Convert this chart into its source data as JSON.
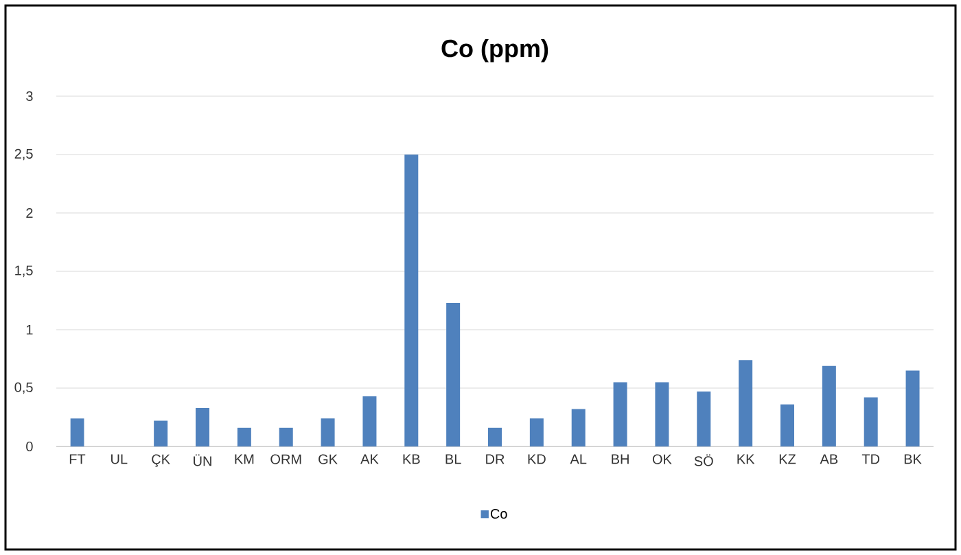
{
  "chart_data": {
    "type": "bar",
    "title": "Co (ppm)",
    "categories": [
      "FT",
      "UL",
      "ÇK",
      "ÜN",
      "KM",
      "ORM",
      "GK",
      "AK",
      "KB",
      "BL",
      "DR",
      "KD",
      "AL",
      "BH",
      "OK",
      "SÖ",
      "KK",
      "KZ",
      "AB",
      "TD",
      "BK"
    ],
    "series": [
      {
        "name": "Co",
        "color": "#4f81bd",
        "values": [
          0.24,
          0,
          0.22,
          0.33,
          0.16,
          0.16,
          0.24,
          0.43,
          2.5,
          1.23,
          0.16,
          0.24,
          0.32,
          0.55,
          0.55,
          0.47,
          0.74,
          0.36,
          0.69,
          0.42,
          0.65
        ]
      }
    ],
    "ylim": [
      0,
      3
    ],
    "yticks": [
      0,
      {
        "value": 0.5,
        "label": "0,5"
      },
      1,
      {
        "value": 1.5,
        "label": "1,5"
      },
      2,
      {
        "value": 2.5,
        "label": "2,5"
      },
      3
    ],
    "grid": "y",
    "legend": "bottom"
  }
}
